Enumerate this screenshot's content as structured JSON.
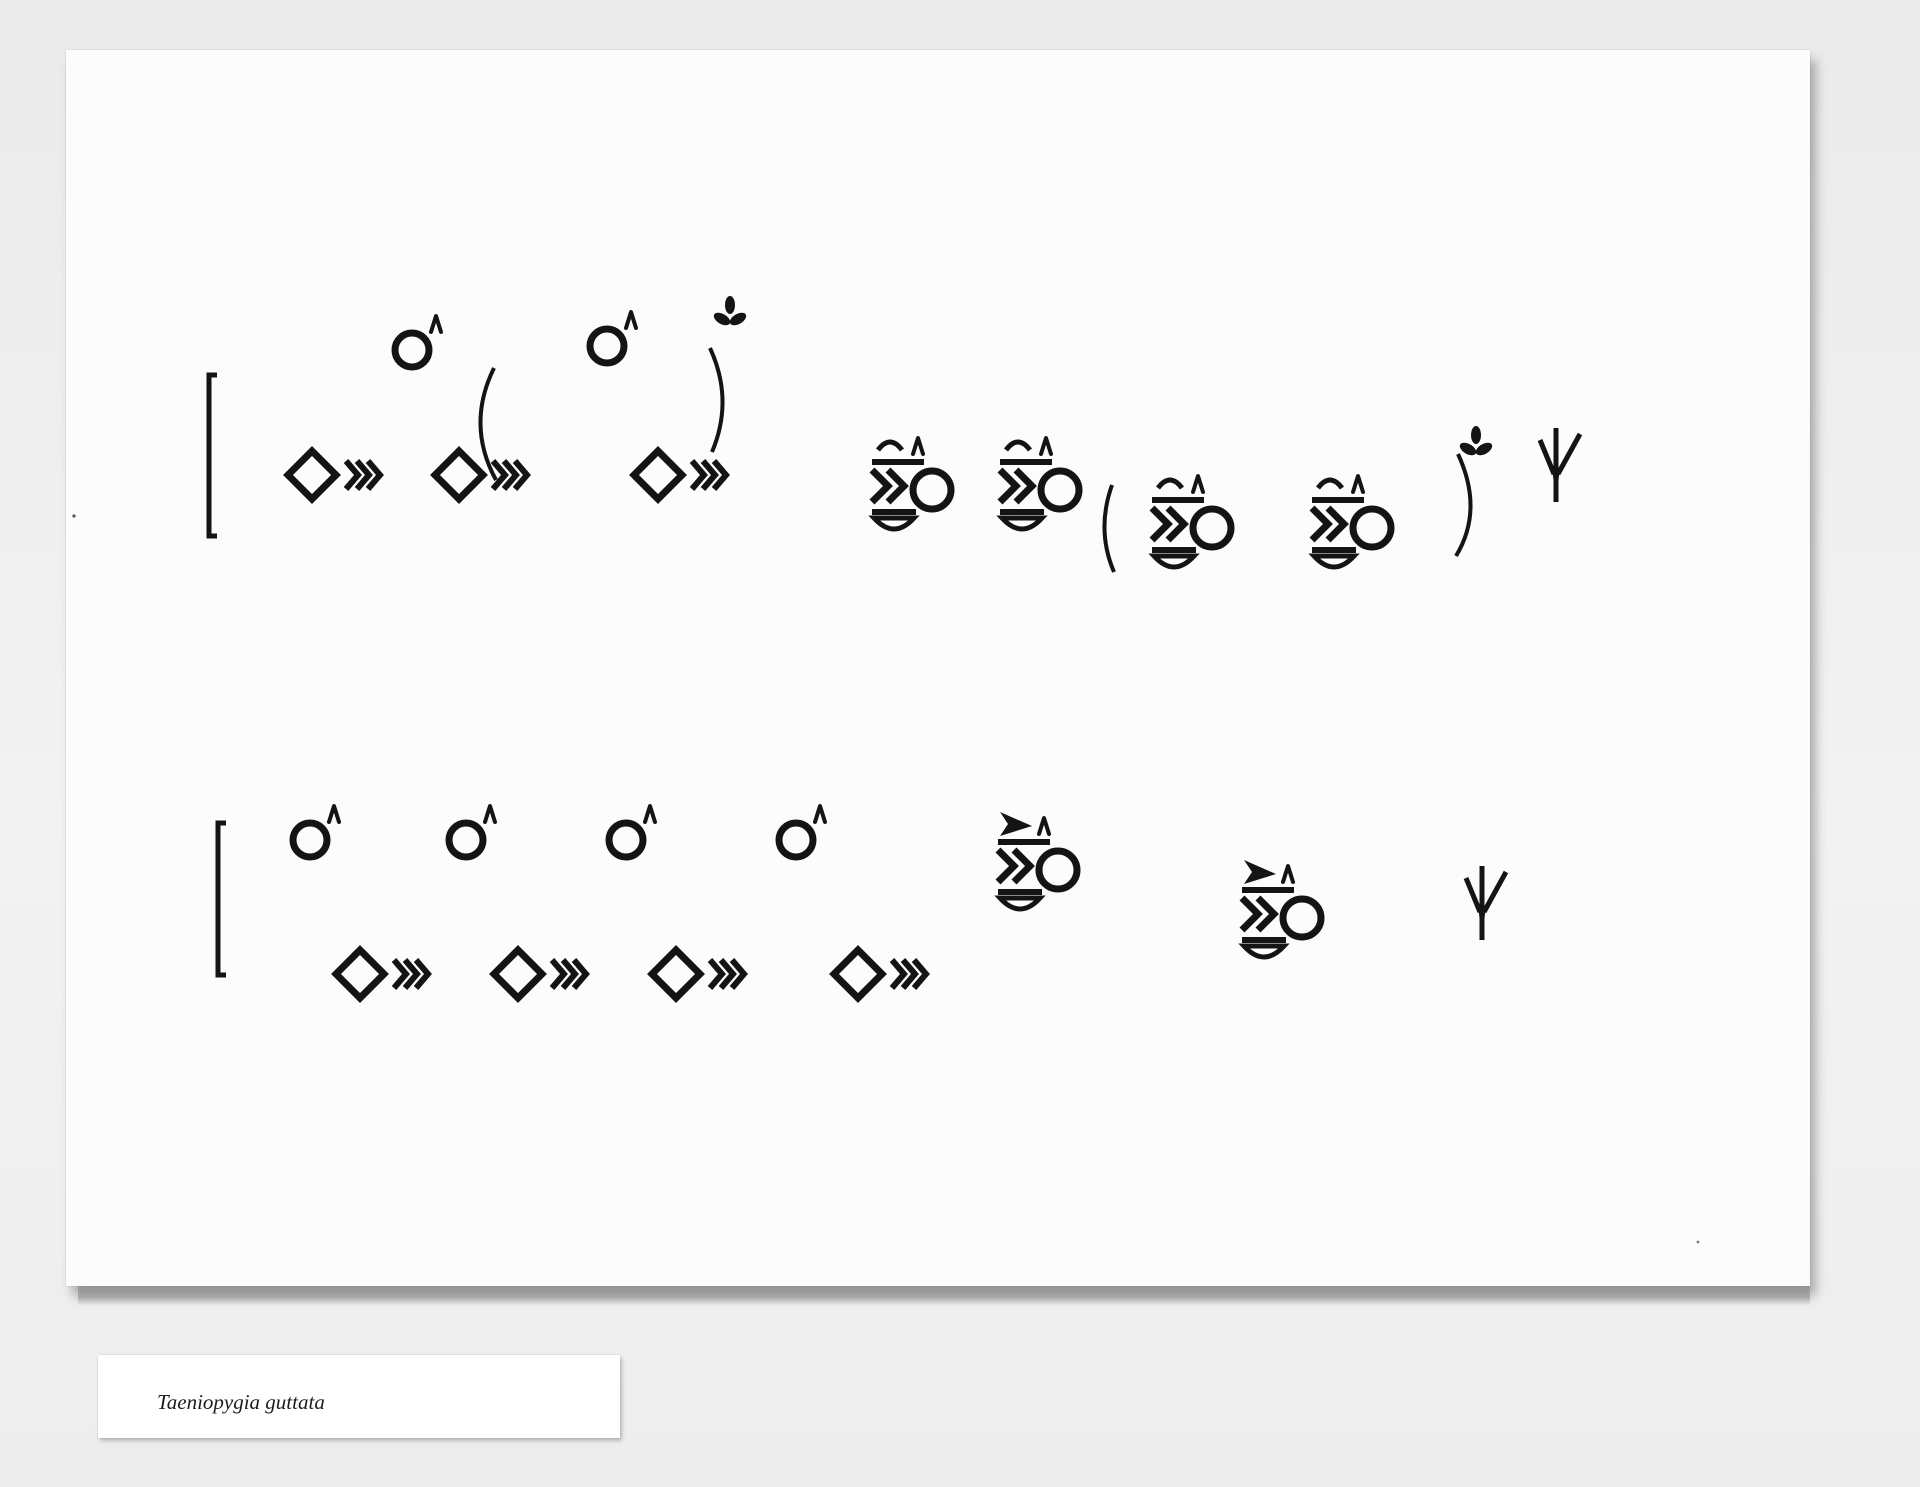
{
  "notation_rows": [
    {
      "phrase_1": [
        "o-caret",
        "diamond-chevrons",
        "diamond-chevrons"
      ],
      "optional_group_1": [
        "o-caret",
        "diamond-chevrons"
      ],
      "optional_group_1_marker": "propeller-icon",
      "phrase_2": [
        "compound-glyph",
        "compound-glyph"
      ],
      "optional_group_2": [
        "compound-glyph",
        "compound-glyph"
      ],
      "optional_group_2_marker": "propeller-icon",
      "end_marker": "bird-foot-icon"
    },
    {
      "phrase_1": [
        "o-caret",
        "o-caret",
        "o-caret",
        "o-caret"
      ],
      "phrase_1_lower": [
        "diamond-chevrons",
        "diamond-chevrons",
        "diamond-chevrons",
        "diamond-chevrons"
      ],
      "phrase_2": [
        "compound-glyph-arrow",
        "compound-glyph-arrow"
      ],
      "end_marker": "bird-foot-icon"
    }
  ],
  "ink_color": "#141414",
  "label": {
    "species": "Taeniopygia guttata"
  }
}
